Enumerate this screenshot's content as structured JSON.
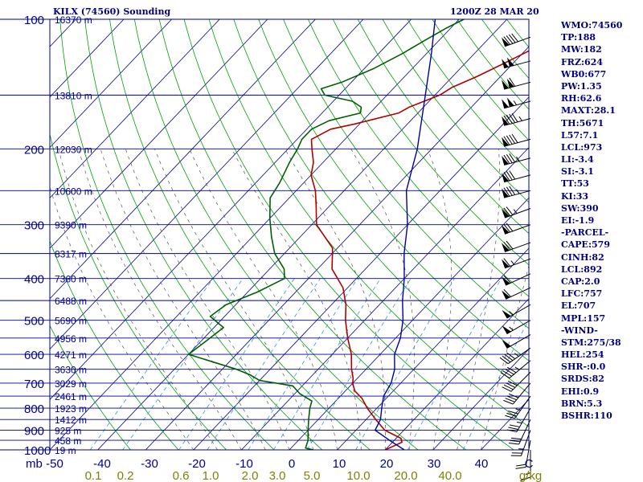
{
  "header": {
    "station": "KILX (74560) Sounding",
    "valid_time": "1200Z 28 MAR 20"
  },
  "indices": [
    "WMO:74560",
    "TP:188",
    "MW:182",
    "FRZ:624",
    "WB0:677",
    "PW:1.35",
    "RH:62.6",
    "MAXT:28.1",
    "TH:5671",
    "L57:7.1",
    "LCL:973",
    "LI:-3.4",
    "SI:-3.1",
    "TT:53",
    "KI:33",
    "SW:390",
    "EI:-1.9",
    "-PARCEL-",
    "CAPE:579",
    "CINH:82",
    "LCL:892",
    "CAP:2.0",
    "LFC:757",
    "EL:707",
    "MPL:157",
    "-WIND-",
    "STM:275/38",
    "HEL:254",
    "SHR-:0.0",
    "SRDS:82",
    "EHI:0.9",
    "BRN:5.3",
    "BSHR:110"
  ],
  "chart_data": {
    "type": "line",
    "diagram": "skew-T log-P",
    "pressure_range": [
      1000,
      100
    ],
    "temperature_range": [
      -50,
      50
    ],
    "pressure_ticks": [
      100,
      200,
      300,
      400,
      500,
      600,
      700,
      800,
      900,
      1000
    ],
    "temperature_ticks": [
      "-50",
      "-40",
      "-30",
      "-20",
      "-10",
      "0",
      "10",
      "20",
      "30",
      "40",
      "C"
    ],
    "mixing_ratio_ticks": [
      {
        "label": "0.1",
        "value": 0.1
      },
      {
        "label": "0.2",
        "value": 0.2
      },
      {
        "label": "0.6",
        "value": 0.6
      },
      {
        "label": "1.0",
        "value": 1.0
      },
      {
        "label": "2.0",
        "value": 2.0
      },
      {
        "label": "3.0",
        "value": 3.0
      },
      {
        "label": "5.0",
        "value": 5.0
      },
      {
        "label": "10.0",
        "value": 10.0
      },
      {
        "label": "20.0",
        "value": 20.0
      },
      {
        "label": "40.0",
        "value": 40.0
      },
      {
        "label": "g/kg",
        "value": null
      }
    ],
    "y_left_label": "mb",
    "height_labels": [
      {
        "p": 100,
        "label": "16370 m"
      },
      {
        "p": 150,
        "label": "13810 m"
      },
      {
        "p": 200,
        "label": "12030 m"
      },
      {
        "p": 250,
        "label": "10600 m"
      },
      {
        "p": 300,
        "label": "9390 m"
      },
      {
        "p": 350,
        "label": "8317 m"
      },
      {
        "p": 400,
        "label": "7360 m"
      },
      {
        "p": 450,
        "label": "6488 m"
      },
      {
        "p": 500,
        "label": "5690 m"
      },
      {
        "p": 550,
        "label": "4956 m"
      },
      {
        "p": 600,
        "label": "4271 m"
      },
      {
        "p": 650,
        "label": "3630 m"
      },
      {
        "p": 700,
        "label": "3029 m"
      },
      {
        "p": 750,
        "label": "2461 m"
      },
      {
        "p": 800,
        "label": "1923 m"
      },
      {
        "p": 850,
        "label": "1412 m"
      },
      {
        "p": 900,
        "label": "925 m"
      },
      {
        "p": 950,
        "label": "458 m"
      },
      {
        "p": 1000,
        "label": "19 m"
      }
    ],
    "series": [
      {
        "key": "temperature",
        "color": "#b00000",
        "points": [
          [
            100,
            -23
          ],
          [
            103,
            -25
          ],
          [
            110,
            -27
          ],
          [
            118,
            -29
          ],
          [
            127,
            -32
          ],
          [
            136,
            -35
          ],
          [
            144,
            -38
          ],
          [
            150,
            -39
          ],
          [
            160,
            -43
          ],
          [
            165,
            -44
          ],
          [
            175,
            -51
          ],
          [
            180,
            -55
          ],
          [
            190,
            -57
          ],
          [
            200,
            -55
          ],
          [
            215,
            -52
          ],
          [
            230,
            -50
          ],
          [
            250,
            -46
          ],
          [
            270,
            -43
          ],
          [
            300,
            -39
          ],
          [
            340,
            -31
          ],
          [
            380,
            -27
          ],
          [
            420,
            -21
          ],
          [
            460,
            -17
          ],
          [
            500,
            -14
          ],
          [
            550,
            -10
          ],
          [
            600,
            -6
          ],
          [
            650,
            -3
          ],
          [
            680,
            -1
          ],
          [
            700,
            0
          ],
          [
            715,
            1
          ],
          [
            730,
            2
          ],
          [
            760,
            5
          ],
          [
            800,
            8
          ],
          [
            850,
            12
          ],
          [
            900,
            16
          ],
          [
            940,
            21
          ],
          [
            960,
            22
          ],
          [
            980,
            21
          ],
          [
            1000,
            20
          ]
        ]
      },
      {
        "key": "dewpoint",
        "color": "#006000",
        "points": [
          [
            100,
            -49
          ],
          [
            105,
            -51
          ],
          [
            112,
            -53
          ],
          [
            120,
            -55
          ],
          [
            130,
            -58
          ],
          [
            140,
            -62
          ],
          [
            145,
            -65
          ],
          [
            150,
            -63
          ],
          [
            155,
            -56
          ],
          [
            160,
            -53
          ],
          [
            165,
            -52
          ],
          [
            172,
            -57
          ],
          [
            180,
            -59
          ],
          [
            190,
            -59
          ],
          [
            200,
            -58
          ],
          [
            215,
            -57
          ],
          [
            240,
            -55
          ],
          [
            260,
            -54
          ],
          [
            290,
            -50
          ],
          [
            320,
            -46
          ],
          [
            350,
            -42
          ],
          [
            380,
            -37
          ],
          [
            400,
            -35
          ],
          [
            430,
            -38
          ],
          [
            460,
            -42
          ],
          [
            490,
            -43
          ],
          [
            520,
            -38
          ],
          [
            560,
            -39
          ],
          [
            600,
            -40
          ],
          [
            650,
            -27
          ],
          [
            670,
            -23
          ],
          [
            690,
            -20
          ],
          [
            710,
            -12
          ],
          [
            740,
            -9
          ],
          [
            770,
            -5
          ],
          [
            800,
            -4
          ],
          [
            850,
            -2
          ],
          [
            900,
            0
          ],
          [
            950,
            2
          ],
          [
            990,
            3
          ],
          [
            1000,
            5
          ]
        ]
      },
      {
        "key": "parcel",
        "color": "#0000a0",
        "points": [
          [
            100,
            -55
          ],
          [
            120,
            -49
          ],
          [
            150,
            -42
          ],
          [
            200,
            -33
          ],
          [
            250,
            -27
          ],
          [
            300,
            -20
          ],
          [
            350,
            -15
          ],
          [
            400,
            -10
          ],
          [
            450,
            -6
          ],
          [
            500,
            -2
          ],
          [
            550,
            1
          ],
          [
            600,
            3
          ],
          [
            650,
            6
          ],
          [
            700,
            8
          ],
          [
            750,
            9
          ],
          [
            800,
            11
          ],
          [
            850,
            13
          ],
          [
            900,
            14
          ],
          [
            950,
            19
          ],
          [
            1000,
            24
          ]
        ]
      }
    ],
    "wind_barbs": [
      {
        "p": 110,
        "dir": 250,
        "kt": 90
      },
      {
        "p": 125,
        "dir": 255,
        "kt": 100
      },
      {
        "p": 140,
        "dir": 255,
        "kt": 110
      },
      {
        "p": 155,
        "dir": 255,
        "kt": 105
      },
      {
        "p": 170,
        "dir": 255,
        "kt": 95
      },
      {
        "p": 190,
        "dir": 255,
        "kt": 90
      },
      {
        "p": 210,
        "dir": 255,
        "kt": 85
      },
      {
        "p": 230,
        "dir": 255,
        "kt": 80
      },
      {
        "p": 250,
        "dir": 255,
        "kt": 85
      },
      {
        "p": 275,
        "dir": 250,
        "kt": 75
      },
      {
        "p": 300,
        "dir": 250,
        "kt": 70
      },
      {
        "p": 330,
        "dir": 250,
        "kt": 70
      },
      {
        "p": 360,
        "dir": 250,
        "kt": 65
      },
      {
        "p": 390,
        "dir": 245,
        "kt": 60
      },
      {
        "p": 420,
        "dir": 245,
        "kt": 60
      },
      {
        "p": 460,
        "dir": 240,
        "kt": 55
      },
      {
        "p": 500,
        "dir": 240,
        "kt": 55
      },
      {
        "p": 540,
        "dir": 240,
        "kt": 50
      },
      {
        "p": 580,
        "dir": 235,
        "kt": 45
      },
      {
        "p": 620,
        "dir": 230,
        "kt": 45
      },
      {
        "p": 660,
        "dir": 225,
        "kt": 40
      },
      {
        "p": 700,
        "dir": 220,
        "kt": 40
      },
      {
        "p": 750,
        "dir": 215,
        "kt": 35
      },
      {
        "p": 800,
        "dir": 210,
        "kt": 35
      },
      {
        "p": 850,
        "dir": 205,
        "kt": 30
      },
      {
        "p": 900,
        "dir": 200,
        "kt": 25
      },
      {
        "p": 950,
        "dir": 190,
        "kt": 20
      },
      {
        "p": 1000,
        "dir": 180,
        "kt": 15
      }
    ],
    "colors": {
      "background": "#ffffff",
      "isobar": "#000090",
      "isotherm": "#000090",
      "dry_adiabat": "#00a000",
      "mixing_ratio": "#3399cc",
      "moist_adiabat": "#555555",
      "axis_text": "#000090",
      "mixing_ratio_text": "#808000"
    }
  }
}
